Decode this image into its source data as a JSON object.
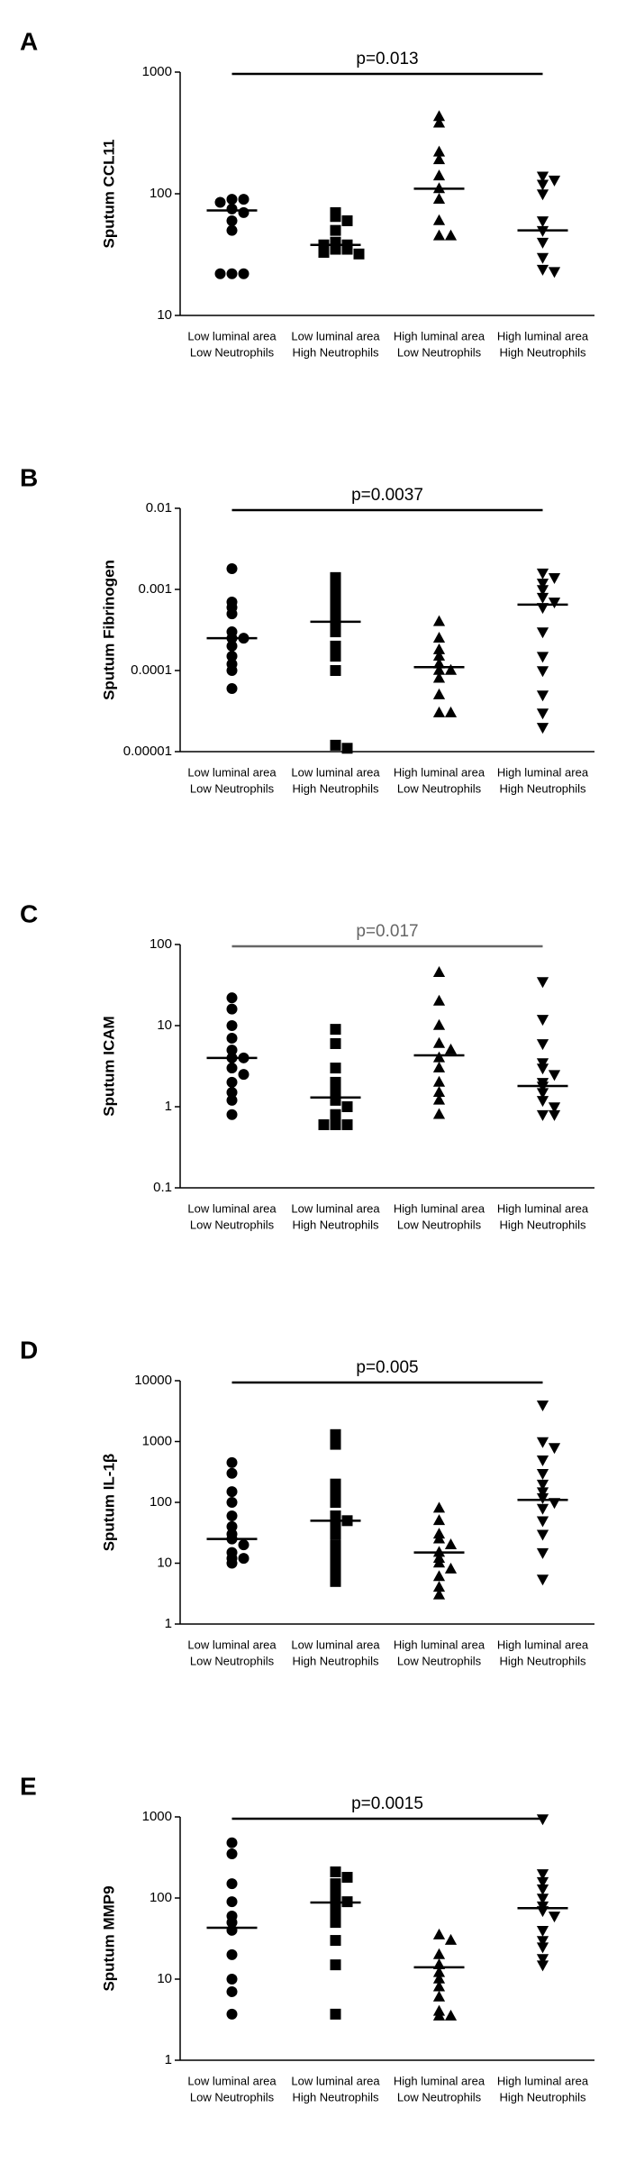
{
  "chart_data": [
    {
      "type": "strip",
      "panel_label": "A",
      "ylabel": "Sputum CCL11",
      "annotation": "p=0.013",
      "annotation_color": "#000000",
      "log_scale": true,
      "ylim": [
        10,
        1000
      ],
      "yticks": [
        10,
        100,
        1000
      ],
      "color": "#000000",
      "categories": [
        [
          "Low  luminal area",
          "Low  Neutrophils"
        ],
        [
          "Low  luminal area",
          "High Neutrophils"
        ],
        [
          "High luminal area",
          "Low  Neutrophils"
        ],
        [
          "High luminal area",
          "High Neutrophils"
        ]
      ],
      "series": [
        {
          "marker": "circle",
          "values": [
            90,
            90,
            85,
            75,
            70,
            60,
            50,
            22,
            22,
            22
          ],
          "median": 73
        },
        {
          "marker": "square",
          "values": [
            70,
            65,
            60,
            50,
            40,
            38,
            38,
            35,
            35,
            33,
            32
          ],
          "median": 38
        },
        {
          "marker": "triangle",
          "values": [
            430,
            380,
            220,
            190,
            140,
            110,
            90,
            60,
            45,
            45
          ],
          "median": 110
        },
        {
          "marker": "triangle-down",
          "values": [
            140,
            130,
            120,
            100,
            60,
            50,
            40,
            30,
            24,
            23
          ],
          "median": 50
        }
      ]
    },
    {
      "type": "strip",
      "panel_label": "B",
      "ylabel": "Sputum Fibrinogen",
      "annotation": "p=0.0037",
      "annotation_color": "#000000",
      "log_scale": true,
      "ylim": [
        1e-05,
        0.01
      ],
      "yticks": [
        1e-05,
        0.0001,
        0.001,
        0.01
      ],
      "color": "#000000",
      "categories": [
        [
          "Low  luminal area",
          "Low  Neutrophils"
        ],
        [
          "Low  luminal area",
          "High Neutrophils"
        ],
        [
          "High luminal area",
          "Low  Neutrophils"
        ],
        [
          "High luminal area",
          "High Neutrophils"
        ]
      ],
      "series": [
        {
          "marker": "circle",
          "values": [
            0.0018,
            0.0007,
            0.0006,
            0.0005,
            0.0003,
            0.00025,
            0.00025,
            0.0002,
            0.00015,
            0.00012,
            0.0001,
            6e-05
          ],
          "median": 0.00025
        },
        {
          "marker": "square",
          "values": [
            0.0014,
            0.0012,
            0.0009,
            0.0008,
            0.0006,
            0.0005,
            0.0004,
            0.0003,
            0.0002,
            0.00015,
            0.0001,
            1.2e-05,
            1.1e-05
          ],
          "median": 0.0004
        },
        {
          "marker": "triangle",
          "values": [
            0.0004,
            0.00025,
            0.00018,
            0.00015,
            0.00012,
            0.0001,
            0.0001,
            8e-05,
            5e-05,
            3e-05,
            3e-05
          ],
          "median": 0.00011
        },
        {
          "marker": "triangle-down",
          "values": [
            0.0016,
            0.0014,
            0.0012,
            0.001,
            0.0008,
            0.0007,
            0.0006,
            0.0003,
            0.00015,
            0.0001,
            5e-05,
            3e-05,
            2e-05
          ],
          "median": 0.00065
        }
      ]
    },
    {
      "type": "strip",
      "panel_label": "C",
      "ylabel": "Sputum ICAM",
      "annotation": "p=0.017",
      "annotation_color": "#666666",
      "log_scale": true,
      "ylim": [
        0.1,
        100
      ],
      "yticks": [
        0.1,
        1,
        10,
        100
      ],
      "color": "#000000",
      "categories": [
        [
          "Low  luminal area",
          "Low  Neutrophils"
        ],
        [
          "Low  luminal area",
          "High Neutrophils"
        ],
        [
          "High luminal area",
          "Low  Neutrophils"
        ],
        [
          "High luminal area",
          "High Neutrophils"
        ]
      ],
      "series": [
        {
          "marker": "circle",
          "values": [
            22,
            16,
            10,
            7,
            5,
            4,
            4,
            3,
            2.5,
            2,
            1.5,
            1.2,
            0.8
          ],
          "median": 4
        },
        {
          "marker": "square",
          "values": [
            9,
            6,
            3,
            2,
            1.5,
            1.2,
            1,
            0.8,
            0.6,
            0.6,
            0.6
          ],
          "median": 1.3
        },
        {
          "marker": "triangle",
          "values": [
            45,
            20,
            10,
            6,
            5,
            4,
            3,
            2,
            1.5,
            1.2,
            0.8
          ],
          "median": 4.3
        },
        {
          "marker": "triangle-down",
          "values": [
            35,
            12,
            6,
            3.5,
            3,
            2.5,
            2,
            1.8,
            1.5,
            1.2,
            1,
            0.8,
            0.8
          ],
          "median": 1.8
        }
      ]
    },
    {
      "type": "strip",
      "panel_label": "D",
      "ylabel": "Sputum IL-1β",
      "annotation": "p=0.005",
      "annotation_color": "#000000",
      "log_scale": true,
      "ylim": [
        1,
        10000
      ],
      "yticks": [
        1,
        10,
        100,
        1000,
        10000
      ],
      "color": "#000000",
      "categories": [
        [
          "Low  luminal area",
          "Low  Neutrophils"
        ],
        [
          "Low  luminal area",
          "High Neutrophils"
        ],
        [
          "High luminal area",
          "Low  Neutrophils"
        ],
        [
          "High luminal area",
          "High Neutrophils"
        ]
      ],
      "series": [
        {
          "marker": "circle",
          "values": [
            450,
            300,
            150,
            100,
            60,
            40,
            30,
            25,
            20,
            15,
            12,
            12,
            10
          ],
          "median": 25
        },
        {
          "marker": "square",
          "values": [
            1300,
            900,
            200,
            150,
            100,
            60,
            50,
            40,
            30,
            20,
            15,
            10,
            7,
            5
          ],
          "median": 50
        },
        {
          "marker": "triangle",
          "values": [
            80,
            50,
            30,
            25,
            20,
            15,
            12,
            10,
            8,
            6,
            4,
            3
          ],
          "median": 15
        },
        {
          "marker": "triangle-down",
          "values": [
            4000,
            1000,
            800,
            500,
            300,
            200,
            150,
            120,
            100,
            80,
            50,
            30,
            15,
            5.5
          ],
          "median": 110
        }
      ]
    },
    {
      "type": "strip",
      "panel_label": "E",
      "ylabel": "Sputum MMP9",
      "annotation": "p=0.0015",
      "annotation_color": "#000000",
      "log_scale": true,
      "ylim": [
        1,
        1000
      ],
      "yticks": [
        1,
        10,
        100,
        1000
      ],
      "color": "#000000",
      "categories": [
        [
          "Low  luminal area",
          "Low  Neutrophils"
        ],
        [
          "Low  luminal area",
          "High Neutrophils"
        ],
        [
          "High luminal area",
          "Low  Neutrophils"
        ],
        [
          "High luminal area",
          "High Neutrophils"
        ]
      ],
      "series": [
        {
          "marker": "circle",
          "values": [
            480,
            350,
            150,
            90,
            60,
            50,
            40,
            20,
            10,
            7,
            3.7
          ],
          "median": 43
        },
        {
          "marker": "square",
          "values": [
            210,
            180,
            150,
            130,
            100,
            90,
            80,
            60,
            50,
            30,
            15,
            3.7
          ],
          "median": 88
        },
        {
          "marker": "triangle",
          "values": [
            35,
            30,
            20,
            15,
            12,
            10,
            8,
            6,
            4,
            3.5,
            3.5
          ],
          "median": 14
        },
        {
          "marker": "triangle-down",
          "values": [
            950,
            200,
            160,
            130,
            100,
            80,
            70,
            60,
            40,
            30,
            25,
            18,
            15
          ],
          "median": 75
        }
      ]
    }
  ]
}
